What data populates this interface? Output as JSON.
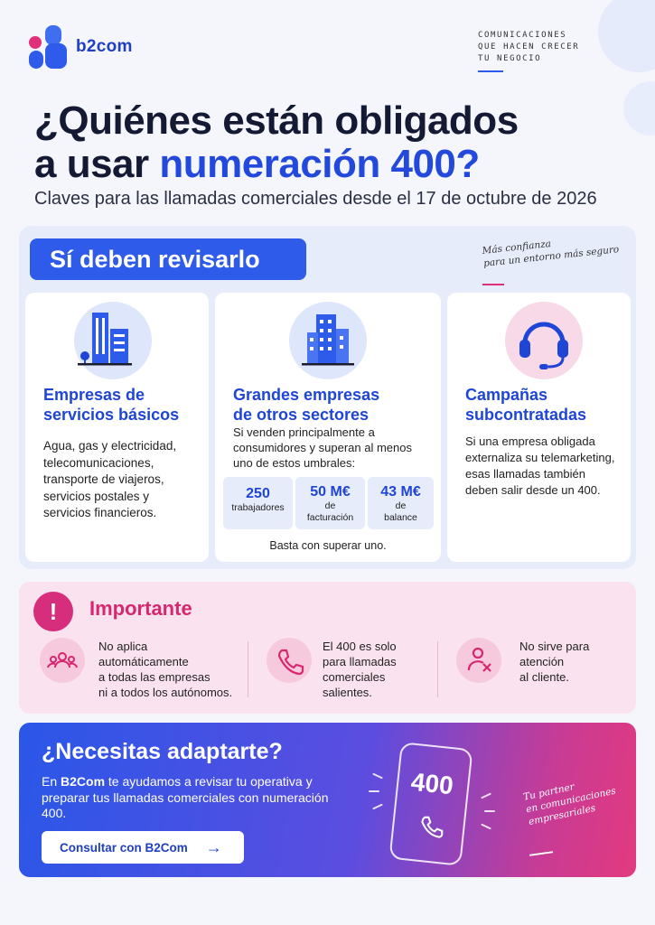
{
  "brand": {
    "name": "b2com",
    "tagline": [
      "COMUNICACIONES",
      "QUE HACEN CRECER",
      "TU NEGOCIO"
    ]
  },
  "hero": {
    "title_line1": "¿Quiénes están obligados",
    "title_line2_plain": "a usar ",
    "title_line2_accent": "numeración 400?",
    "subtitle": "Claves para las llamadas comerciales desde el 17 de octubre de 2026"
  },
  "section_required": {
    "heading": "Sí deben revisarlo",
    "note": [
      "Más confianza",
      "para un entorno más seguro"
    ],
    "cards": [
      {
        "icon": "buildings-icon",
        "title": [
          "Empresas de",
          "servicios básicos"
        ],
        "body": [
          "Agua, gas y electricidad,",
          "telecomunicaciones,",
          "transporte de viajeros,",
          "servicios postales y",
          "servicios financieros."
        ]
      },
      {
        "icon": "office-building-icon",
        "title": [
          "Grandes empresas",
          "de otros sectores"
        ],
        "body": [
          "Si venden principalmente a",
          "consumidores y superan al menos",
          "uno de estos umbrales:"
        ],
        "stats": [
          {
            "value": "250",
            "label": [
              "trabajadores"
            ]
          },
          {
            "value": "50 M€",
            "label": [
              "de",
              "facturación"
            ]
          },
          {
            "value": "43 M€",
            "label": [
              "de",
              "balance"
            ]
          }
        ],
        "footnote": "Basta con superar uno."
      },
      {
        "icon": "headset-icon",
        "title": [
          "Campañas",
          "subcontratadas"
        ],
        "body": [
          "Si una empresa obligada",
          "externaliza su telemarketing,",
          "esas llamadas también",
          "deben salir desde un 400."
        ]
      }
    ]
  },
  "section_important": {
    "heading": "Importante",
    "items": [
      {
        "icon": "group-icon",
        "text": [
          "No aplica",
          "automáticamente",
          "a todas las empresas",
          "ni a todos los autónomos."
        ]
      },
      {
        "icon": "phone-icon",
        "text": [
          "El 400 es solo",
          "para llamadas",
          "comerciales",
          "salientes."
        ]
      },
      {
        "icon": "user-x-icon",
        "text": [
          "No sirve para",
          "atención",
          "al cliente."
        ]
      }
    ]
  },
  "section_cta": {
    "heading": "¿Necesitas adaptarte?",
    "body_prefix": "En ",
    "body_brand": "B2Com",
    "body_rest": " te ayudamos a revisar tu operativa y preparar tus llamadas comerciales con numeración 400.",
    "button": "Consultar con B2Com",
    "phone_number": "400",
    "partner_note": [
      "Tu partner",
      "en comunicaciones",
      "empresariales"
    ]
  },
  "colors": {
    "primary": "#2f5bea",
    "accent_pink": "#d6276f",
    "title_blue": "#1f45d6"
  }
}
